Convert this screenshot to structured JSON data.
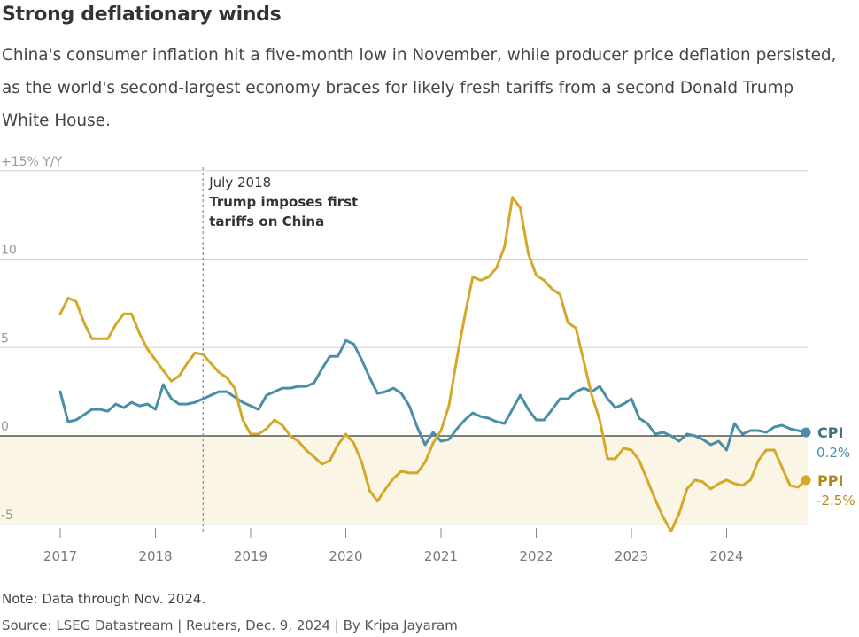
{
  "title": "Strong deflationary winds",
  "subtitle": "China's consumer inflation hit a five-month low in November, while producer price deflation persisted, as the world's second-largest economy braces for likely fresh tariffs from a second Donald Trump White House.",
  "note": "Note: Data through Nov. 2024.",
  "source": "Source: LSEG Datastream | Reuters, Dec. 9, 2024 | By Kripa Jayaram",
  "colors": {
    "cpi": "#4a8fa6",
    "ppi": "#d4a82a",
    "ppi_label": "#b18a1a",
    "negative_band": "#fbf5e6"
  },
  "chart_data": {
    "type": "line",
    "ylim": [
      -5,
      15
    ],
    "y_ticks": [
      "+15% Y/Y",
      "10",
      "5",
      "0",
      "-5"
    ],
    "y_tick_values": [
      15,
      10,
      5,
      0,
      -5
    ],
    "x_ticks": [
      "2017",
      "2018",
      "2019",
      "2020",
      "2021",
      "2022",
      "2023",
      "2024"
    ],
    "x_tick_values": [
      2017,
      2018,
      2019,
      2020,
      2021,
      2022,
      2023,
      2024
    ],
    "x_range": [
      2017,
      2024.83
    ],
    "annotation": {
      "x": 2018.5,
      "date": "July 2018",
      "line1": "Trump imposes first",
      "line2": "tariffs on China"
    },
    "series": [
      {
        "name": "CPI",
        "end_label": "0.2%",
        "x": [
          2017.0,
          2017.083,
          2017.167,
          2017.25,
          2017.333,
          2017.417,
          2017.5,
          2017.583,
          2017.667,
          2017.75,
          2017.833,
          2017.917,
          2018.0,
          2018.083,
          2018.167,
          2018.25,
          2018.333,
          2018.417,
          2018.5,
          2018.583,
          2018.667,
          2018.75,
          2018.833,
          2018.917,
          2019.0,
          2019.083,
          2019.167,
          2019.25,
          2019.333,
          2019.417,
          2019.5,
          2019.583,
          2019.667,
          2019.75,
          2019.833,
          2019.917,
          2020.0,
          2020.083,
          2020.167,
          2020.25,
          2020.333,
          2020.417,
          2020.5,
          2020.583,
          2020.667,
          2020.75,
          2020.833,
          2020.917,
          2021.0,
          2021.083,
          2021.167,
          2021.25,
          2021.333,
          2021.417,
          2021.5,
          2021.583,
          2021.667,
          2021.75,
          2021.833,
          2021.917,
          2022.0,
          2022.083,
          2022.167,
          2022.25,
          2022.333,
          2022.417,
          2022.5,
          2022.583,
          2022.667,
          2022.75,
          2022.833,
          2022.917,
          2023.0,
          2023.083,
          2023.167,
          2023.25,
          2023.333,
          2023.417,
          2023.5,
          2023.583,
          2023.667,
          2023.75,
          2023.833,
          2023.917,
          2024.0,
          2024.083,
          2024.167,
          2024.25,
          2024.333,
          2024.417,
          2024.5,
          2024.583,
          2024.667,
          2024.75,
          2024.833
        ],
        "values": [
          2.5,
          0.8,
          0.9,
          1.2,
          1.5,
          1.5,
          1.4,
          1.8,
          1.6,
          1.9,
          1.7,
          1.8,
          1.5,
          2.9,
          2.1,
          1.8,
          1.8,
          1.9,
          2.1,
          2.3,
          2.5,
          2.5,
          2.2,
          1.9,
          1.7,
          1.5,
          2.3,
          2.5,
          2.7,
          2.7,
          2.8,
          2.8,
          3.0,
          3.8,
          4.5,
          4.5,
          5.4,
          5.2,
          4.3,
          3.3,
          2.4,
          2.5,
          2.7,
          2.4,
          1.7,
          0.5,
          -0.5,
          0.2,
          -0.3,
          -0.2,
          0.4,
          0.9,
          1.3,
          1.1,
          1.0,
          0.8,
          0.7,
          1.5,
          2.3,
          1.5,
          0.9,
          0.9,
          1.5,
          2.1,
          2.1,
          2.5,
          2.7,
          2.5,
          2.8,
          2.1,
          1.6,
          1.8,
          2.1,
          1.0,
          0.7,
          0.1,
          0.2,
          0.0,
          -0.3,
          0.1,
          0.0,
          -0.2,
          -0.5,
          -0.3,
          -0.8,
          0.7,
          0.1,
          0.3,
          0.3,
          0.2,
          0.5,
          0.6,
          0.4,
          0.3,
          0.2
        ]
      },
      {
        "name": "PPI",
        "end_label": "-2.5%",
        "x": [
          2017.0,
          2017.083,
          2017.167,
          2017.25,
          2017.333,
          2017.417,
          2017.5,
          2017.583,
          2017.667,
          2017.75,
          2017.833,
          2017.917,
          2018.0,
          2018.083,
          2018.167,
          2018.25,
          2018.333,
          2018.417,
          2018.5,
          2018.583,
          2018.667,
          2018.75,
          2018.833,
          2018.917,
          2019.0,
          2019.083,
          2019.167,
          2019.25,
          2019.333,
          2019.417,
          2019.5,
          2019.583,
          2019.667,
          2019.75,
          2019.833,
          2019.917,
          2020.0,
          2020.083,
          2020.167,
          2020.25,
          2020.333,
          2020.417,
          2020.5,
          2020.583,
          2020.667,
          2020.75,
          2020.833,
          2020.917,
          2021.0,
          2021.083,
          2021.167,
          2021.25,
          2021.333,
          2021.417,
          2021.5,
          2021.583,
          2021.667,
          2021.75,
          2021.833,
          2021.917,
          2022.0,
          2022.083,
          2022.167,
          2022.25,
          2022.333,
          2022.417,
          2022.5,
          2022.583,
          2022.667,
          2022.75,
          2022.833,
          2022.917,
          2023.0,
          2023.083,
          2023.167,
          2023.25,
          2023.333,
          2023.417,
          2023.5,
          2023.583,
          2023.667,
          2023.75,
          2023.833,
          2023.917,
          2024.0,
          2024.083,
          2024.167,
          2024.25,
          2024.333,
          2024.417,
          2024.5,
          2024.583,
          2024.667,
          2024.75,
          2024.833
        ],
        "values": [
          6.9,
          7.8,
          7.6,
          6.4,
          5.5,
          5.5,
          5.5,
          6.3,
          6.9,
          6.9,
          5.8,
          4.9,
          4.3,
          3.7,
          3.1,
          3.4,
          4.1,
          4.7,
          4.6,
          4.1,
          3.6,
          3.3,
          2.7,
          0.9,
          0.1,
          0.1,
          0.4,
          0.9,
          0.6,
          0.0,
          -0.3,
          -0.8,
          -1.2,
          -1.6,
          -1.4,
          -0.5,
          0.1,
          -0.4,
          -1.5,
          -3.1,
          -3.7,
          -3.0,
          -2.4,
          -2.0,
          -2.1,
          -2.1,
          -1.5,
          -0.4,
          0.3,
          1.7,
          4.4,
          6.8,
          9.0,
          8.8,
          9.0,
          9.5,
          10.7,
          13.5,
          12.9,
          10.3,
          9.1,
          8.8,
          8.3,
          8.0,
          6.4,
          6.1,
          4.2,
          2.3,
          0.9,
          -1.3,
          -1.3,
          -0.7,
          -0.8,
          -1.4,
          -2.5,
          -3.6,
          -4.6,
          -5.4,
          -4.4,
          -3.0,
          -2.5,
          -2.6,
          -3.0,
          -2.7,
          -2.5,
          -2.7,
          -2.8,
          -2.5,
          -1.4,
          -0.8,
          -0.8,
          -1.8,
          -2.8,
          -2.9,
          -2.5
        ]
      }
    ]
  }
}
